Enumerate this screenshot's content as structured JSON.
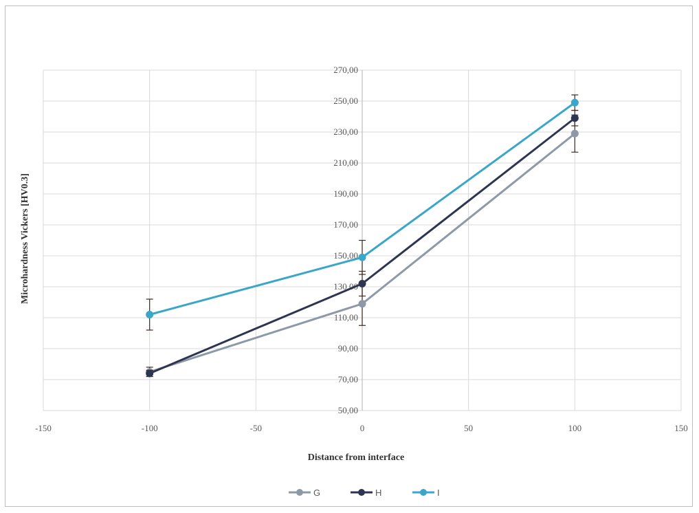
{
  "chart_data": {
    "type": "line",
    "xlabel": "Distance from interface",
    "ylabel": "Microhardness Vickers [HV0.3]",
    "xlim": [
      -150,
      150
    ],
    "ylim": [
      50,
      270
    ],
    "x_ticks": [
      -150,
      -100,
      -50,
      0,
      50,
      100,
      150
    ],
    "y_ticks": [
      50,
      70,
      90,
      110,
      130,
      150,
      170,
      190,
      210,
      230,
      250,
      270
    ],
    "x_tick_labels": [
      "-150",
      "-100",
      "-50",
      "0",
      "50",
      "100",
      "150"
    ],
    "y_tick_labels": [
      "50,00",
      "70,00",
      "90,00",
      "110,00",
      "130,00",
      "150,00",
      "170,00",
      "190,00",
      "210,00",
      "230,00",
      "250,00",
      "270,00"
    ],
    "grid": true,
    "legend_position": "bottom",
    "x": [
      -100,
      0,
      100
    ],
    "series": [
      {
        "name": "G",
        "color": "#8e99a8",
        "values": [
          75,
          119,
          229
        ],
        "error": [
          3,
          14,
          12
        ]
      },
      {
        "name": "H",
        "color": "#2e3550",
        "values": [
          74,
          132,
          239
        ],
        "error": [
          2,
          8,
          5
        ]
      },
      {
        "name": "I",
        "color": "#3aa6c8",
        "values": [
          112,
          149,
          249
        ],
        "error": [
          10,
          11,
          5
        ]
      }
    ]
  }
}
